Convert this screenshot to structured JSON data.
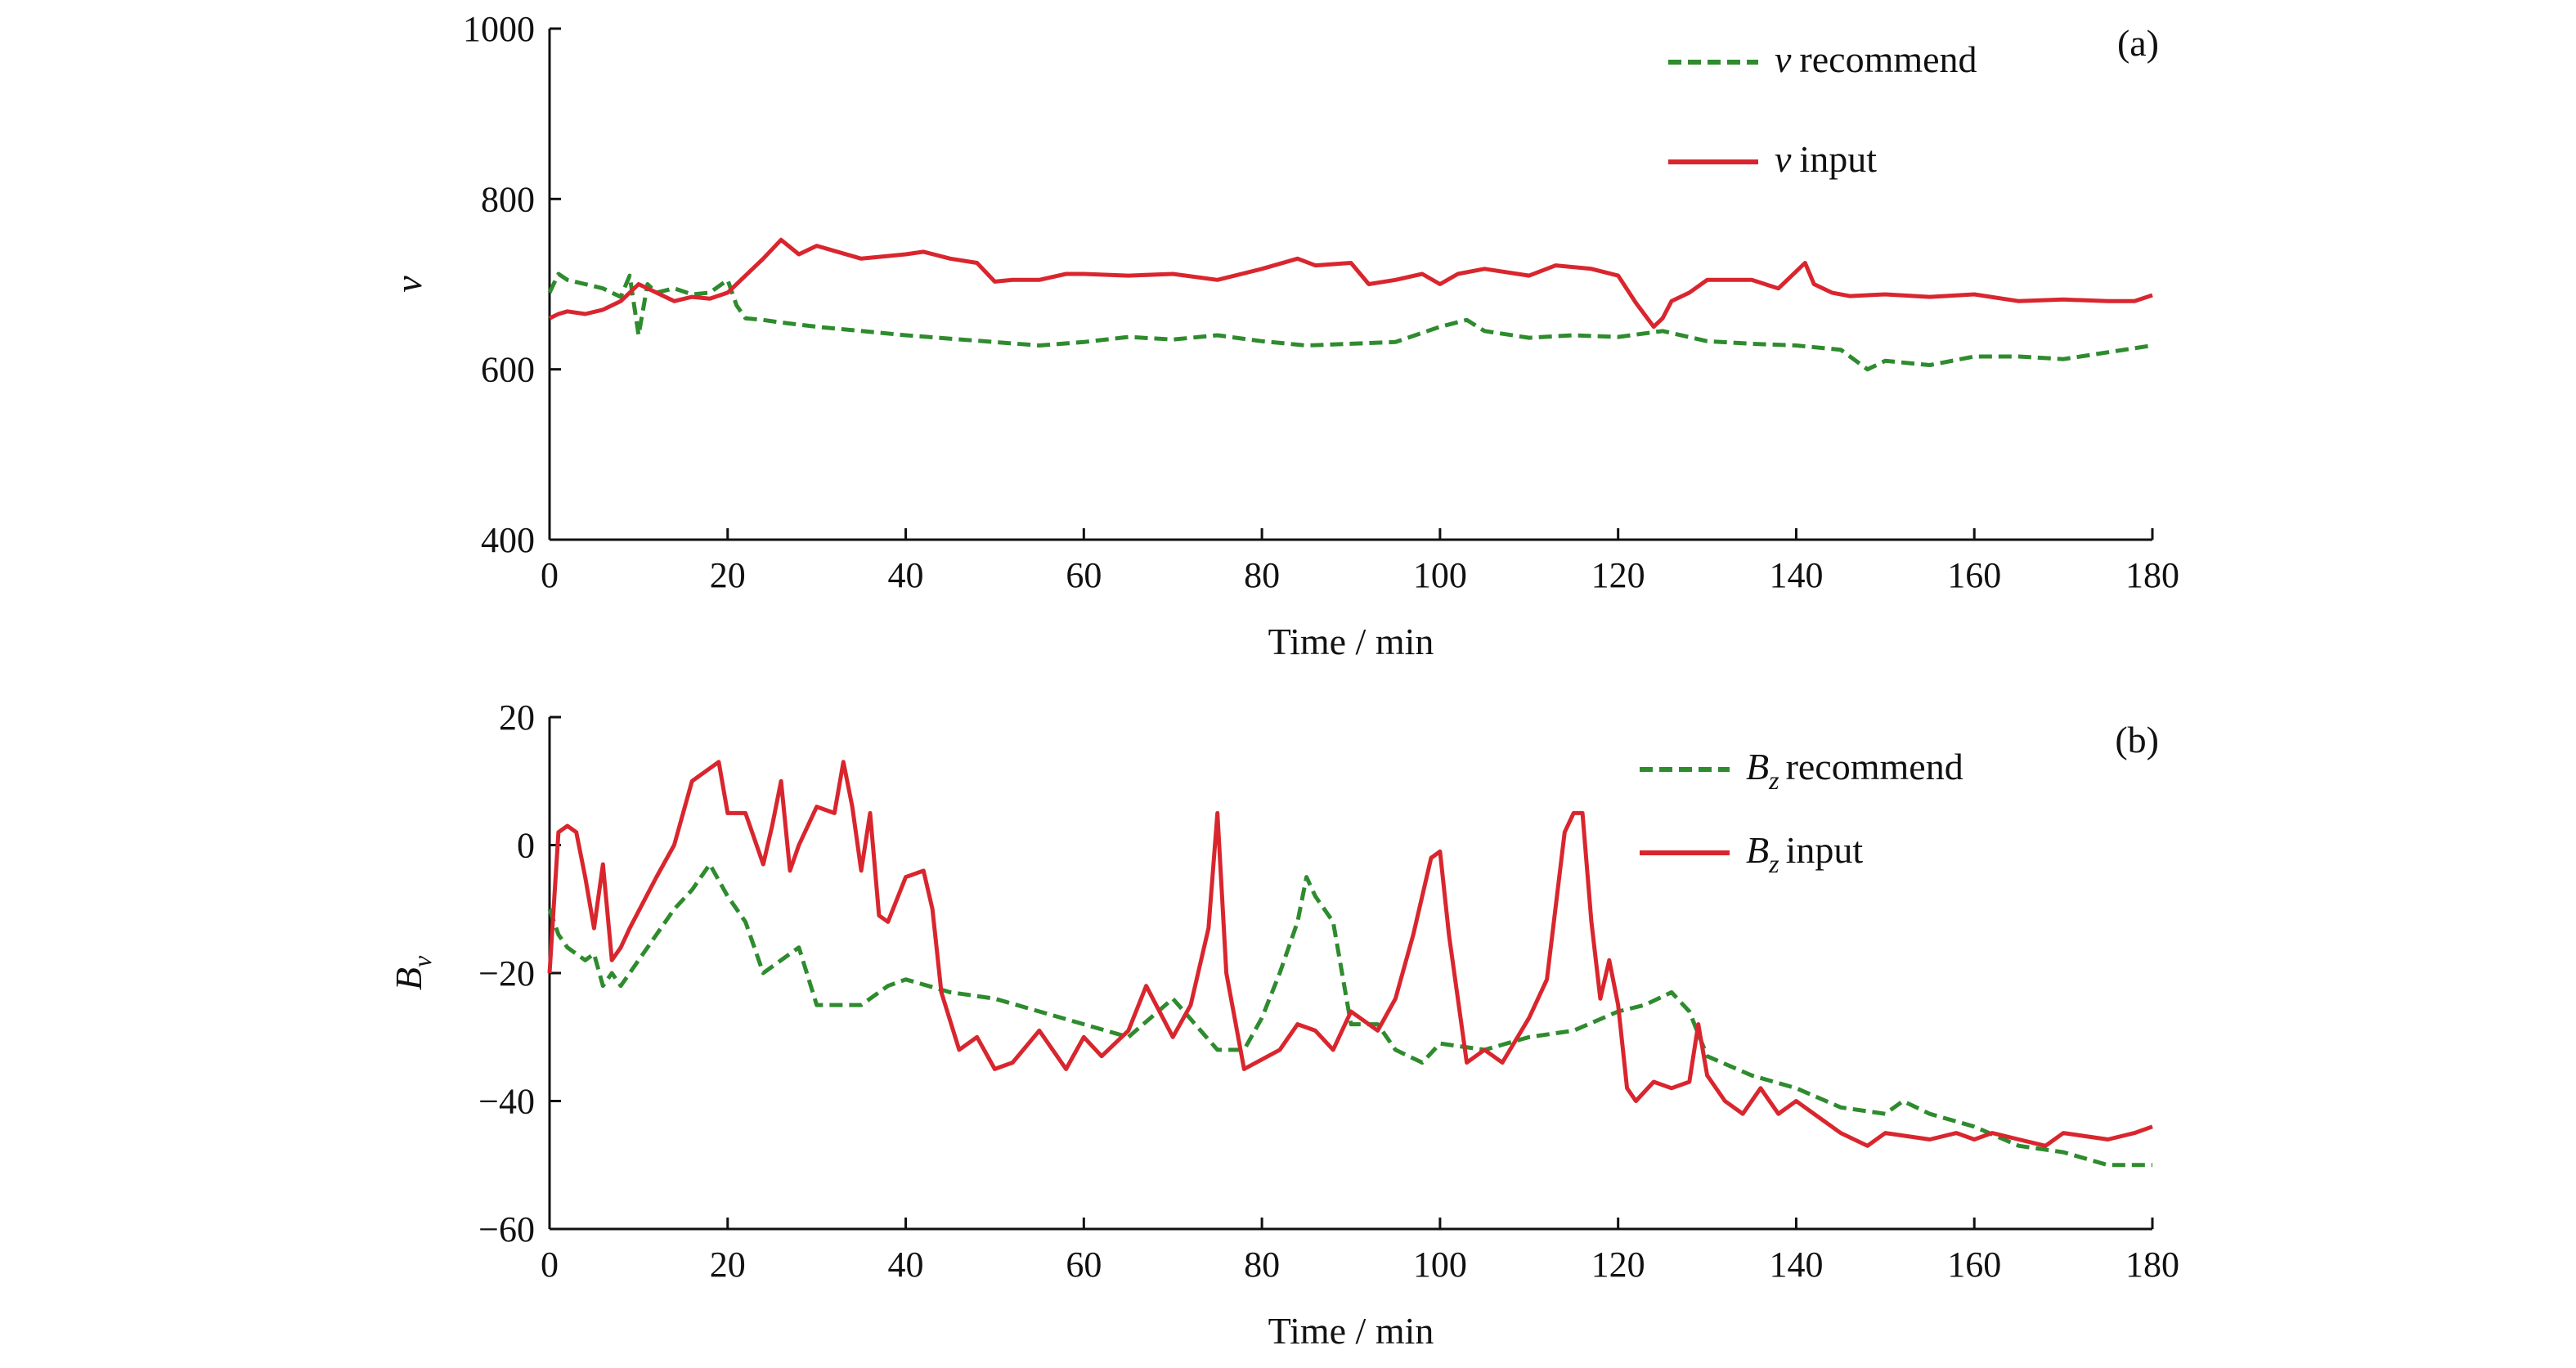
{
  "chart_data": [
    {
      "type": "line",
      "panel_label": "(a)",
      "xlabel": "Time / min",
      "ylabel": "v",
      "xlim": [
        0,
        180
      ],
      "ylim": [
        400,
        1000
      ],
      "xticks": [
        "0",
        "20",
        "40",
        "60",
        "80",
        "100",
        "120",
        "140",
        "160",
        "180"
      ],
      "yticks": [
        "400",
        "600",
        "800",
        "1000"
      ],
      "legend_position": "top-right",
      "series": [
        {
          "name": "v recommend",
          "name_symbol": "v",
          "name_rest": "recommend",
          "color": "#2e8b2e",
          "style": "dashed",
          "x": [
            0,
            1,
            2,
            4,
            6,
            8,
            9,
            10,
            11,
            12,
            14,
            16,
            18,
            20,
            21,
            22,
            24,
            26,
            30,
            35,
            40,
            45,
            50,
            55,
            60,
            65,
            70,
            75,
            80,
            85,
            90,
            95,
            100,
            103,
            105,
            110,
            115,
            120,
            125,
            130,
            135,
            140,
            145,
            148,
            150,
            155,
            160,
            165,
            170,
            175,
            180
          ],
          "y": [
            690,
            712,
            705,
            700,
            695,
            685,
            710,
            640,
            700,
            690,
            695,
            688,
            690,
            705,
            675,
            660,
            658,
            655,
            650,
            645,
            640,
            636,
            632,
            628,
            632,
            638,
            635,
            640,
            633,
            628,
            630,
            632,
            650,
            658,
            645,
            637,
            640,
            638,
            645,
            633,
            630,
            628,
            623,
            600,
            610,
            605,
            615,
            615,
            612,
            620,
            628
          ]
        },
        {
          "name": "v input",
          "name_symbol": "v",
          "name_rest": "input",
          "color": "#d9262e",
          "style": "solid",
          "x": [
            0,
            1,
            2,
            4,
            6,
            8,
            10,
            12,
            14,
            16,
            18,
            20,
            22,
            24,
            26,
            28,
            30,
            35,
            40,
            42,
            45,
            48,
            50,
            52,
            55,
            58,
            60,
            65,
            70,
            75,
            80,
            84,
            86,
            90,
            92,
            95,
            98,
            100,
            102,
            105,
            110,
            113,
            117,
            120,
            122,
            124,
            125,
            126,
            128,
            130,
            135,
            138,
            140,
            141,
            142,
            144,
            146,
            150,
            155,
            160,
            165,
            170,
            175,
            178,
            180
          ],
          "y": [
            660,
            665,
            668,
            665,
            670,
            680,
            700,
            690,
            680,
            685,
            683,
            690,
            710,
            730,
            752,
            735,
            745,
            730,
            735,
            738,
            730,
            725,
            703,
            705,
            705,
            712,
            712,
            710,
            712,
            705,
            718,
            730,
            722,
            725,
            700,
            705,
            712,
            700,
            712,
            718,
            710,
            722,
            718,
            710,
            678,
            650,
            660,
            680,
            690,
            705,
            705,
            695,
            715,
            725,
            700,
            690,
            686,
            688,
            685,
            688,
            680,
            682,
            680,
            680,
            687
          ]
        }
      ]
    },
    {
      "type": "line",
      "panel_label": "(b)",
      "xlabel": "Time / min",
      "ylabel": "B",
      "ylabel_sub": "v",
      "xlim": [
        0,
        180
      ],
      "ylim": [
        -60,
        20
      ],
      "xticks": [
        "0",
        "20",
        "40",
        "60",
        "80",
        "100",
        "120",
        "140",
        "160",
        "180"
      ],
      "yticks": [
        "−60",
        "−40",
        "−20",
        "0",
        "20"
      ],
      "legend_position": "top-right",
      "series": [
        {
          "name": "Bz recommend",
          "name_symbol": "B",
          "name_sub": "z",
          "name_rest": "recommend",
          "color": "#2e8b2e",
          "style": "dashed",
          "x": [
            0,
            1,
            2,
            4,
            5,
            6,
            7,
            8,
            10,
            12,
            14,
            16,
            18,
            20,
            22,
            24,
            26,
            28,
            30,
            35,
            38,
            40,
            45,
            50,
            55,
            60,
            65,
            70,
            75,
            78,
            80,
            82,
            84,
            85,
            86,
            88,
            90,
            93,
            95,
            98,
            100,
            105,
            110,
            115,
            120,
            123,
            126,
            128,
            130,
            135,
            140,
            145,
            150,
            152,
            155,
            160,
            165,
            170,
            175,
            180
          ],
          "y": [
            -10,
            -14,
            -16,
            -18,
            -17,
            -22,
            -20,
            -22,
            -18,
            -14,
            -10,
            -7,
            -3,
            -8,
            -12,
            -20,
            -18,
            -16,
            -25,
            -25,
            -22,
            -21,
            -23,
            -24,
            -26,
            -28,
            -30,
            -24,
            -32,
            -32,
            -27,
            -20,
            -12,
            -5,
            -8,
            -12,
            -28,
            -28,
            -32,
            -34,
            -31,
            -32,
            -30,
            -29,
            -26,
            -25,
            -23,
            -26,
            -33,
            -36,
            -38,
            -41,
            -42,
            -40,
            -42,
            -44,
            -47,
            -48,
            -50,
            -50
          ]
        },
        {
          "name": "Bz input",
          "name_symbol": "B",
          "name_sub": "z",
          "name_rest": "input",
          "color": "#d9262e",
          "style": "solid",
          "x": [
            0,
            1,
            2,
            3,
            4,
            5,
            6,
            7,
            8,
            9,
            12,
            14,
            16,
            18,
            19,
            20,
            22,
            24,
            25,
            26,
            27,
            28,
            30,
            32,
            33,
            34,
            35,
            36,
            37,
            38,
            40,
            42,
            43,
            44,
            46,
            48,
            50,
            52,
            55,
            58,
            60,
            62,
            65,
            67,
            70,
            72,
            74,
            75,
            76,
            78,
            82,
            84,
            86,
            88,
            90,
            93,
            95,
            97,
            99,
            100,
            101,
            103,
            105,
            107,
            110,
            112,
            114,
            115,
            116,
            117,
            118,
            119,
            120,
            121,
            122,
            124,
            126,
            128,
            129,
            130,
            132,
            134,
            136,
            138,
            140,
            142,
            145,
            148,
            150,
            155,
            158,
            160,
            162,
            165,
            168,
            170,
            175,
            178,
            180
          ],
          "y": [
            -20,
            2,
            3,
            2,
            -5,
            -13,
            -3,
            -18,
            -16,
            -13,
            -5,
            0,
            10,
            12,
            13,
            5,
            5,
            -3,
            3,
            10,
            -4,
            0,
            6,
            5,
            13,
            6,
            -4,
            5,
            -11,
            -12,
            -5,
            -4,
            -10,
            -23,
            -32,
            -30,
            -35,
            -34,
            -29,
            -35,
            -30,
            -33,
            -29,
            -22,
            -30,
            -25,
            -13,
            5,
            -20,
            -35,
            -32,
            -28,
            -29,
            -32,
            -26,
            -29,
            -24,
            -14,
            -2,
            -1,
            -14,
            -34,
            -32,
            -34,
            -27,
            -21,
            2,
            5,
            5,
            -12,
            -24,
            -18,
            -25,
            -38,
            -40,
            -37,
            -38,
            -37,
            -28,
            -36,
            -40,
            -42,
            -38,
            -42,
            -40,
            -42,
            -45,
            -47,
            -45,
            -46,
            -45,
            -46,
            -45,
            -46,
            -47,
            -45,
            -46,
            -45,
            -44
          ]
        }
      ]
    }
  ]
}
